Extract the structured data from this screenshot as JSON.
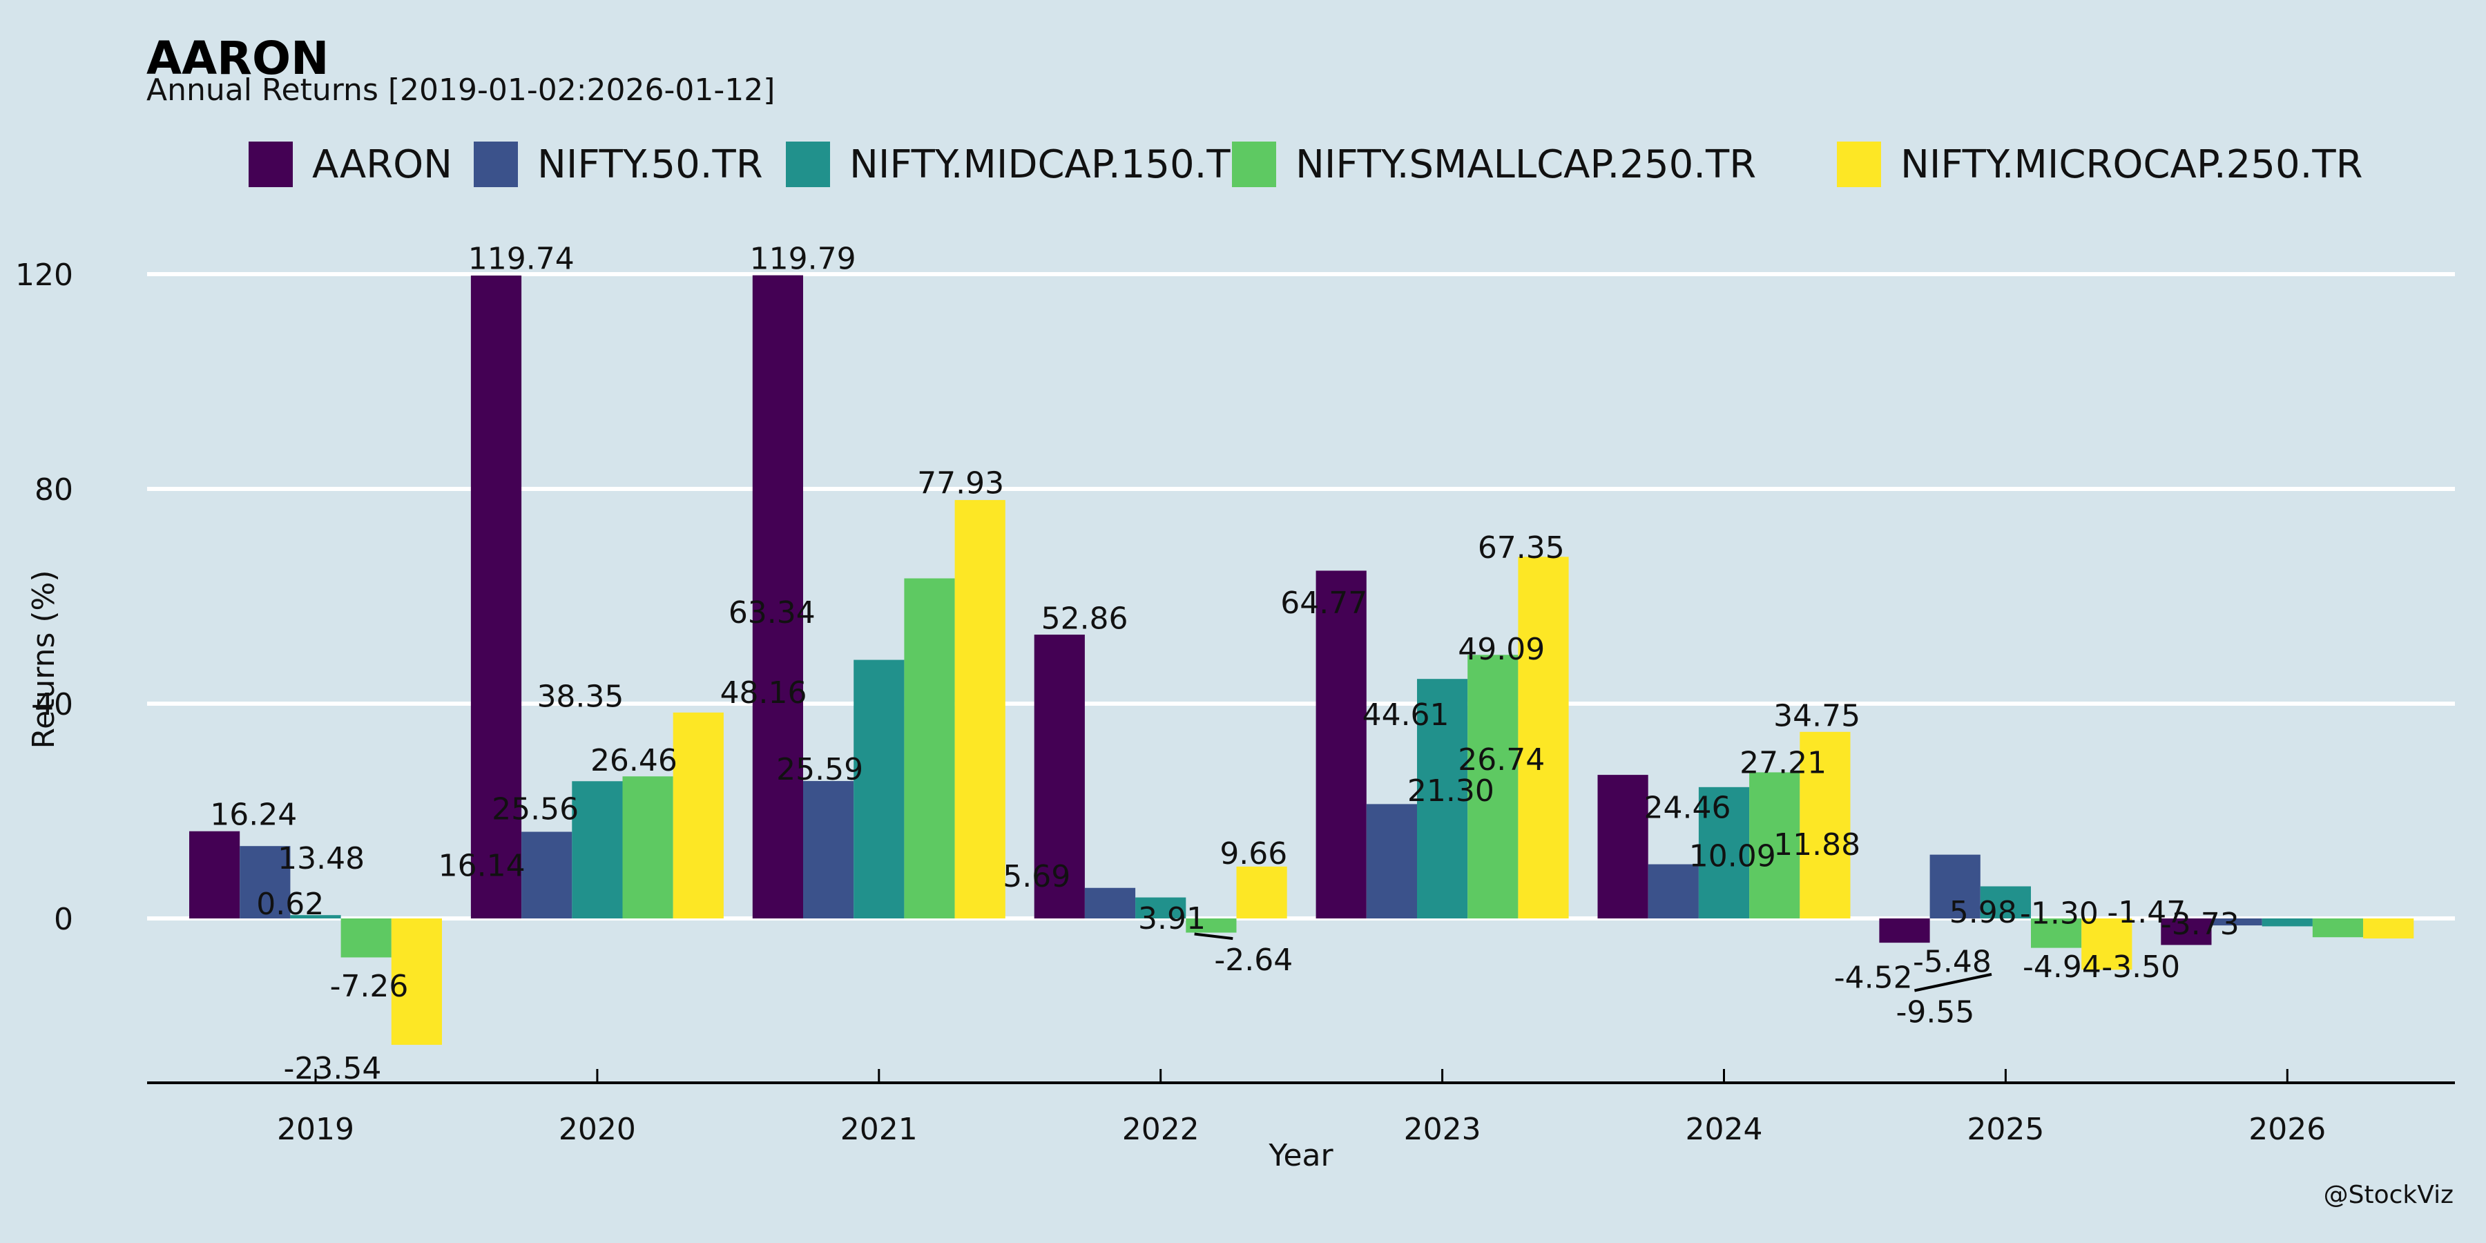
{
  "chart_data": {
    "type": "bar",
    "title": "AARON",
    "subtitle": "Annual Returns [2019-01-02:2026-01-12]",
    "xlabel": "Year",
    "ylabel": "Returns (%)",
    "ylim": [
      -30.6,
      133
    ],
    "yticks": [
      0,
      40,
      80,
      120
    ],
    "ytick_labels": [
      "0",
      "40",
      "80",
      "120"
    ],
    "grid": "horizontal",
    "legend_position": "top-center",
    "credit": "@StockViz",
    "background_color": "#d5e4eb",
    "categories": [
      "2019",
      "2020",
      "2021",
      "2022",
      "2023",
      "2024",
      "2025",
      "2026"
    ],
    "series": [
      {
        "name": "AARON",
        "color": "#440154",
        "values": [
          16.24,
          119.74,
          119.79,
          52.86,
          64.77,
          26.74,
          -4.52,
          -4.94
        ]
      },
      {
        "name": "NIFTY.50.TR",
        "color": "#3b528b",
        "values": [
          13.48,
          16.14,
          25.59,
          5.69,
          21.3,
          10.09,
          11.88,
          -1.3
        ]
      },
      {
        "name": "NIFTY.MIDCAP.150.TR",
        "color": "#21918c",
        "values": [
          0.62,
          25.56,
          48.16,
          3.91,
          44.61,
          24.46,
          5.98,
          -1.47
        ]
      },
      {
        "name": "NIFTY.SMALLCAP.250.TR",
        "color": "#5ec962",
        "values": [
          -7.26,
          26.46,
          63.34,
          -2.64,
          49.09,
          27.21,
          -5.48,
          -3.5
        ]
      },
      {
        "name": "NIFTY.MICROCAP.250.TR",
        "color": "#fde725",
        "values": [
          -23.54,
          38.35,
          77.93,
          9.66,
          67.35,
          34.75,
          -9.55,
          -3.73
        ]
      }
    ],
    "annotations": [
      {
        "text": "16.24",
        "x": -0.22,
        "y": 19.5
      },
      {
        "text": "13.48",
        "x": 0.02,
        "y": 11.3
      },
      {
        "text": "0.62",
        "x": -0.09,
        "y": 2.8
      },
      {
        "text": "-7.26",
        "x": 0.19,
        "y": -12.5
      },
      {
        "text": "-23.54",
        "x": 0.06,
        "y": -27.8
      },
      {
        "text": "119.74",
        "x": 0.73,
        "y": 123
      },
      {
        "text": "16.14",
        "x": 0.59,
        "y": 10.0
      },
      {
        "text": "25.56",
        "x": 0.78,
        "y": 20.5
      },
      {
        "text": "38.35",
        "x": 0.94,
        "y": 41.5
      },
      {
        "text": "26.46",
        "x": 1.13,
        "y": 29.6
      },
      {
        "text": "119.79",
        "x": 1.73,
        "y": 123
      },
      {
        "text": "48.16",
        "x": 1.59,
        "y": 42.2
      },
      {
        "text": "25.59",
        "x": 1.79,
        "y": 27.9
      },
      {
        "text": "63.34",
        "x": 1.62,
        "y": 57.1
      },
      {
        "text": "77.93",
        "x": 2.29,
        "y": 81.2
      },
      {
        "text": "52.86",
        "x": 2.73,
        "y": 56.0
      },
      {
        "text": "5.69",
        "x": 2.56,
        "y": 8.0
      },
      {
        "text": "3.91",
        "x": 3.04,
        "y": 0.1
      },
      {
        "text": "-2.64",
        "x": 3.33,
        "y": -7.6,
        "leader": {
          "x": 3.12,
          "y": -2.9
        }
      },
      {
        "text": "9.66",
        "x": 3.33,
        "y": 12.2
      },
      {
        "text": "64.77",
        "x": 3.58,
        "y": 58.9
      },
      {
        "text": "44.61",
        "x": 3.87,
        "y": 38.1
      },
      {
        "text": "21.30",
        "x": 4.03,
        "y": 23.9
      },
      {
        "text": "49.09",
        "x": 4.21,
        "y": 50.3
      },
      {
        "text": "26.74",
        "x": 4.21,
        "y": 29.7
      },
      {
        "text": "67.35",
        "x": 4.28,
        "y": 69.2
      },
      {
        "text": "24.46",
        "x": 4.87,
        "y": 20.8
      },
      {
        "text": "10.09",
        "x": 5.03,
        "y": 11.8
      },
      {
        "text": "27.21",
        "x": 5.21,
        "y": 29.1
      },
      {
        "text": "34.75",
        "x": 5.33,
        "y": 37.9
      },
      {
        "text": "11.88",
        "x": 5.33,
        "y": 13.9
      },
      {
        "text": "-4.52",
        "x": 5.53,
        "y": -10.9
      },
      {
        "text": "-5.48",
        "x": 5.81,
        "y": -7.9
      },
      {
        "text": "5.98",
        "x": 5.92,
        "y": 1.3
      },
      {
        "text": "-9.55",
        "x": 5.75,
        "y": -17.3,
        "leader": {
          "x": 5.95,
          "y": -10.4
        }
      },
      {
        "text": "-4.94",
        "x": 6.2,
        "y": -8.9
      },
      {
        "text": "-1.30",
        "x": 6.19,
        "y": 1.1
      },
      {
        "text": "-3.50",
        "x": 6.48,
        "y": -8.9
      },
      {
        "text": "-1.47",
        "x": 6.5,
        "y": 1.3
      },
      {
        "text": "-3.73",
        "x": 6.69,
        "y": -0.9
      }
    ]
  }
}
